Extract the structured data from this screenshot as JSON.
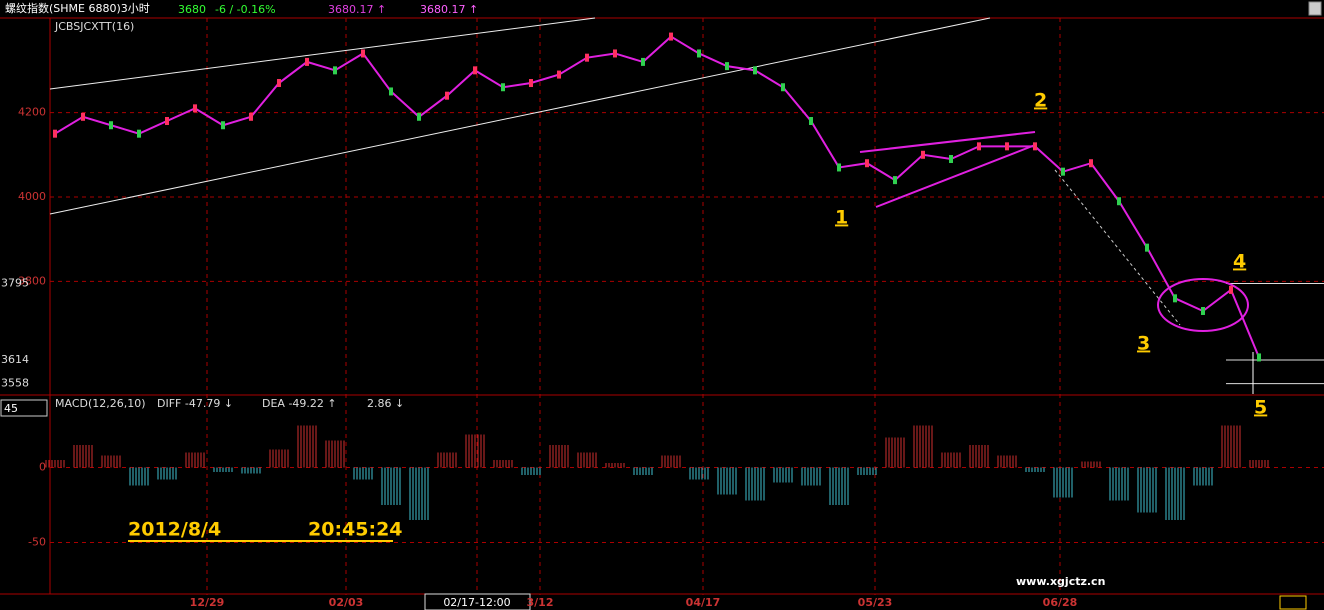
{
  "header": {
    "title": "螺纹指数(SHME 6880)3小时",
    "last": "3680",
    "change": "-6 / -0.16%",
    "price_a": "3680.17 ↑",
    "price_b": "3680.17 ↑"
  },
  "indicator": "JCBSJCXTT(16)",
  "macd_header": {
    "name": "MACD(12,26,10)",
    "diff": "DIFF  -47.79 ↓",
    "dea": "DEA  -49.22 ↑",
    "macd": "2.86 ↓"
  },
  "side_box": "45",
  "price_axis": {
    "ylim": [
      3531,
      4424
    ],
    "yticks": [
      4200,
      4000,
      3800
    ],
    "levels": [
      3795,
      3614,
      3558
    ]
  },
  "macd_axis": {
    "ylim": [
      -85,
      47
    ],
    "yticks": [
      0,
      -50
    ]
  },
  "dates": [
    "12/29",
    "02/03",
    "02/17-12:00",
    "3/12",
    "04/17",
    "05/23",
    "06/28"
  ],
  "price": {
    "values": [
      4150,
      4190,
      4170,
      4150,
      4180,
      4210,
      4170,
      4190,
      4270,
      4320,
      4300,
      4340,
      4250,
      4190,
      4240,
      4300,
      4260,
      4270,
      4290,
      4330,
      4340,
      4320,
      4380,
      4340,
      4310,
      4300,
      4260,
      4180,
      4070,
      4080,
      4040,
      4100,
      4090,
      4120,
      4120,
      4120,
      4060,
      4080,
      3990,
      3880,
      3760,
      3730,
      3780,
      3620
    ]
  },
  "macd": {
    "values": [
      5,
      15,
      8,
      -12,
      -8,
      10,
      -3,
      -4,
      12,
      28,
      18,
      -8,
      -25,
      -35,
      10,
      22,
      5,
      -5,
      15,
      10,
      3,
      -5,
      8,
      -8,
      -18,
      -22,
      -10,
      -12,
      -25,
      -5,
      20,
      28,
      10,
      15,
      8,
      -3,
      -20,
      4,
      -22,
      -30,
      -35,
      -12,
      28,
      5
    ]
  },
  "annotations": [
    "1",
    "2",
    "3",
    "4",
    "5"
  ],
  "stamp": {
    "date": "2012/8/4",
    "time": "20:45:24"
  },
  "watermark": "www.xgjctz.cn"
}
